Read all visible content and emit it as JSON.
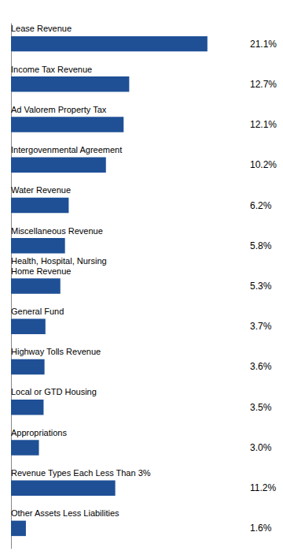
{
  "chart_data": {
    "type": "bar",
    "orientation": "horizontal",
    "categories": [
      "Lease Revenue",
      "Income Tax Revenue",
      "Ad Valorem Property Tax",
      "Intergovenmental Agreement",
      "Water Revenue",
      "Miscellaneous Revenue",
      "Health, Hospital, Nursing\nHome Revenue",
      "General Fund",
      "Highway Tolls Revenue",
      "Local or GTD Housing",
      "Appropriations",
      "Revenue Types Each Less Than 3%",
      "Other Assets Less Liabilities"
    ],
    "values": [
      21.1,
      12.7,
      12.1,
      10.2,
      6.2,
      5.8,
      5.3,
      3.7,
      3.6,
      3.5,
      3.0,
      11.2,
      1.6
    ],
    "value_labels": [
      "21.1%",
      "12.7%",
      "12.1%",
      "10.2%",
      "6.2%",
      "5.8%",
      "5.3%",
      "3.7%",
      "3.6%",
      "3.5%",
      "3.0%",
      "11.2%",
      "1.6%"
    ],
    "data_labels": true,
    "color": "#1F5096",
    "xlim": [
      0,
      25
    ],
    "tick_labels": false,
    "grid": false
  }
}
